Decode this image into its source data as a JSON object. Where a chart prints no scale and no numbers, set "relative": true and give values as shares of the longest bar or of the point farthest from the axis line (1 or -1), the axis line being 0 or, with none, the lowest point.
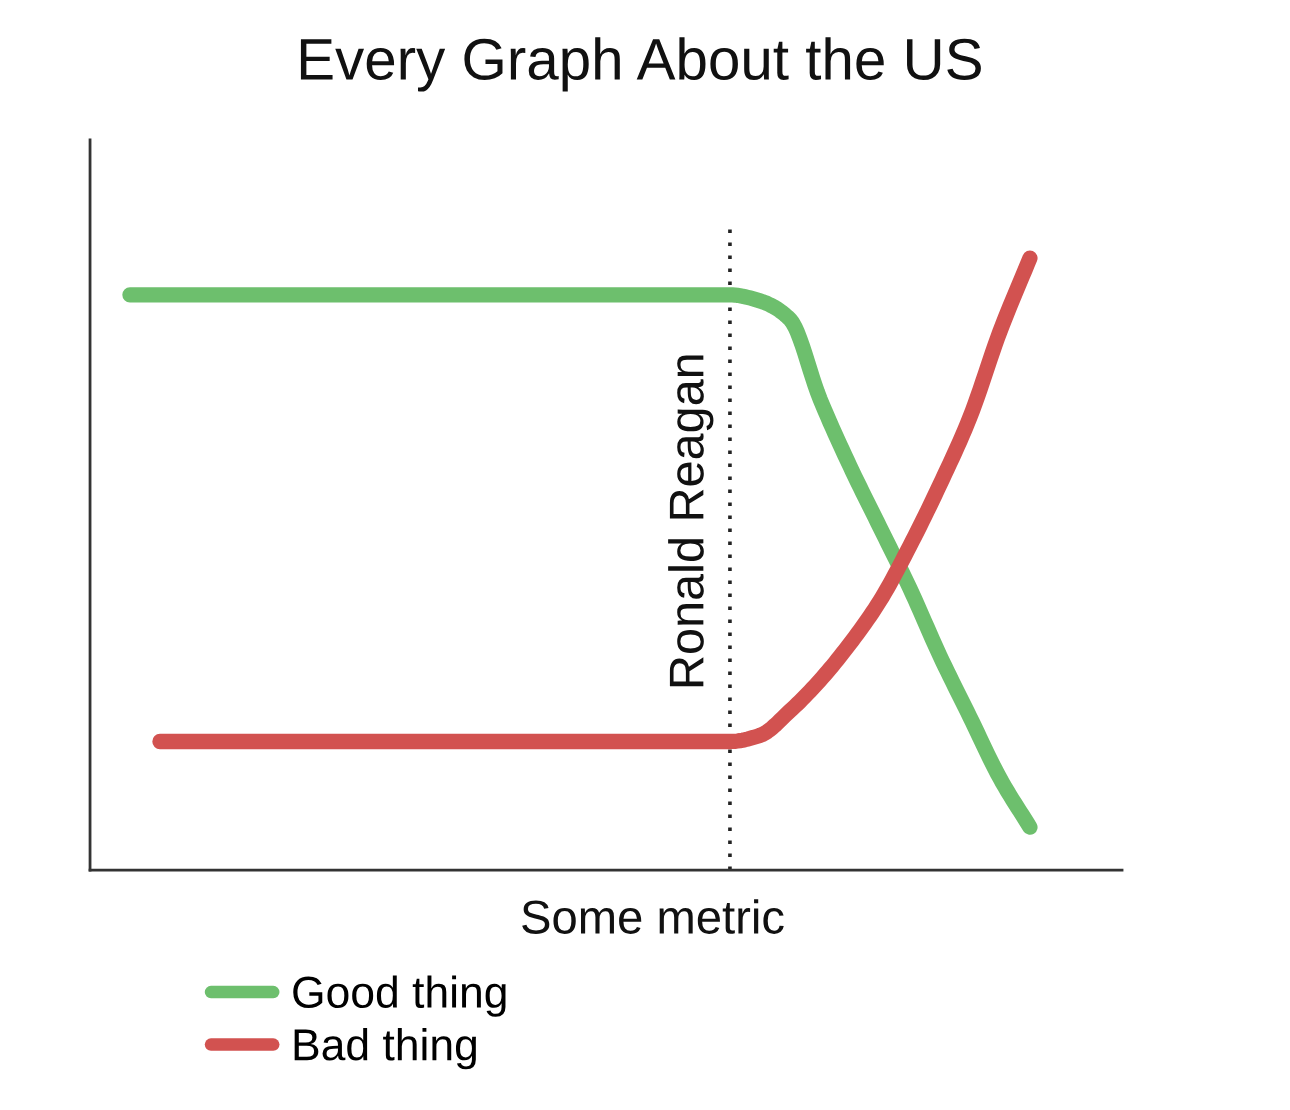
{
  "chart_data": {
    "type": "line",
    "title": "Every Graph About the US",
    "xlabel": "Some metric",
    "categories": [
      null,
      null,
      null,
      null,
      null,
      null,
      null,
      null,
      null,
      null,
      null,
      null,
      null,
      null,
      null,
      null,
      null,
      null,
      null,
      null,
      null,
      null,
      null,
      null,
      null,
      null,
      null,
      null,
      null,
      null,
      null
    ],
    "relative": true,
    "series": [
      {
        "name": "Good thing",
        "color": "#6dbf6d",
        "values": [
          0.94,
          0.94,
          0.94,
          0.94,
          0.94,
          0.94,
          0.94,
          0.94,
          0.94,
          0.94,
          0.94,
          0.94,
          0.94,
          0.94,
          0.94,
          0.94,
          0.94,
          0.94,
          0.94,
          0.94,
          0.94,
          0.93,
          0.9,
          0.77,
          0.66,
          0.56,
          0.46,
          0.35,
          0.25,
          0.15,
          0.07
        ]
      },
      {
        "name": "Bad thing",
        "color": "#d25250",
        "values": [
          null,
          0.21,
          0.21,
          0.21,
          0.21,
          0.21,
          0.21,
          0.21,
          0.21,
          0.21,
          0.21,
          0.21,
          0.21,
          0.21,
          0.21,
          0.21,
          0.21,
          0.21,
          0.21,
          0.21,
          0.21,
          0.22,
          0.26,
          0.31,
          0.37,
          0.44,
          0.53,
          0.63,
          0.74,
          0.88,
          1
        ]
      }
    ],
    "annotations": [
      "Ronald Reagan"
    ],
    "legend": "bottom left",
    "line_style": "solid"
  }
}
